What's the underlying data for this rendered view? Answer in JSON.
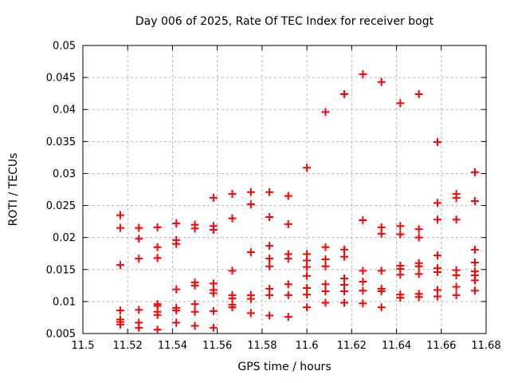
{
  "window": {
    "background": "#ffffff"
  },
  "chart_data": {
    "type": "scatter",
    "title": "Day 006 of 2025, Rate Of TEC Index for receiver bogt",
    "xlabel": "GPS time / hours",
    "ylabel": "ROTI / TECUs",
    "xlim": [
      11.5,
      11.68
    ],
    "ylim": [
      0.005,
      0.05
    ],
    "xticks": [
      11.5,
      11.52,
      11.54,
      11.56,
      11.58,
      11.6,
      11.62,
      11.64,
      11.66,
      11.68
    ],
    "xtick_labels": [
      "11.5",
      "11.52",
      "11.54",
      "11.56",
      "11.58",
      "11.6",
      "11.62",
      "11.64",
      "11.66",
      "11.68"
    ],
    "yticks": [
      0.005,
      0.01,
      0.015,
      0.02,
      0.025,
      0.03,
      0.035,
      0.04,
      0.045,
      0.05
    ],
    "ytick_labels": [
      "0.005",
      "0.01",
      "0.015",
      "0.02",
      "0.025",
      "0.03",
      "0.035",
      "0.04",
      "0.045",
      "0.05"
    ],
    "grid": true,
    "legend": "none",
    "marker": "plus",
    "colors": {
      "marker": "#ff0000",
      "grid": "#b4b4b4",
      "border": "#000000",
      "text": "#000000",
      "background": "#ffffff"
    },
    "series": [
      {
        "name": "ROTI",
        "points": [
          [
            11.5167,
            0.0235
          ],
          [
            11.5167,
            0.0215
          ],
          [
            11.5167,
            0.0157
          ],
          [
            11.5167,
            0.0086
          ],
          [
            11.5167,
            0.0072
          ],
          [
            11.5167,
            0.0068
          ],
          [
            11.5167,
            0.0064
          ],
          [
            11.525,
            0.0215
          ],
          [
            11.525,
            0.0198
          ],
          [
            11.525,
            0.0167
          ],
          [
            11.525,
            0.0087
          ],
          [
            11.525,
            0.0067
          ],
          [
            11.525,
            0.0059
          ],
          [
            11.5333,
            0.0216
          ],
          [
            11.5333,
            0.0185
          ],
          [
            11.5333,
            0.0168
          ],
          [
            11.5333,
            0.0096
          ],
          [
            11.5333,
            0.0093
          ],
          [
            11.5333,
            0.0084
          ],
          [
            11.5333,
            0.0079
          ],
          [
            11.5333,
            0.0056
          ],
          [
            11.5417,
            0.0222
          ],
          [
            11.5417,
            0.0196
          ],
          [
            11.5417,
            0.019
          ],
          [
            11.5417,
            0.0119
          ],
          [
            11.5417,
            0.009
          ],
          [
            11.5417,
            0.0086
          ],
          [
            11.5417,
            0.0067
          ],
          [
            11.55,
            0.022
          ],
          [
            11.55,
            0.0214
          ],
          [
            11.55,
            0.013
          ],
          [
            11.55,
            0.0125
          ],
          [
            11.55,
            0.0096
          ],
          [
            11.55,
            0.0084
          ],
          [
            11.55,
            0.0062
          ],
          [
            11.5583,
            0.0262
          ],
          [
            11.5583,
            0.0218
          ],
          [
            11.5583,
            0.0212
          ],
          [
            11.5583,
            0.0128
          ],
          [
            11.5583,
            0.0118
          ],
          [
            11.5583,
            0.0113
          ],
          [
            11.5583,
            0.0085
          ],
          [
            11.5583,
            0.0059
          ],
          [
            11.5667,
            0.0268
          ],
          [
            11.5667,
            0.023
          ],
          [
            11.5667,
            0.0148
          ],
          [
            11.5667,
            0.011
          ],
          [
            11.5667,
            0.0105
          ],
          [
            11.5667,
            0.0095
          ],
          [
            11.5667,
            0.0091
          ],
          [
            11.575,
            0.0271
          ],
          [
            11.575,
            0.0252
          ],
          [
            11.575,
            0.0177
          ],
          [
            11.575,
            0.011
          ],
          [
            11.575,
            0.0104
          ],
          [
            11.575,
            0.0082
          ],
          [
            11.5833,
            0.0271
          ],
          [
            11.5833,
            0.0232
          ],
          [
            11.5833,
            0.0187
          ],
          [
            11.5833,
            0.0167
          ],
          [
            11.5833,
            0.0155
          ],
          [
            11.5833,
            0.012
          ],
          [
            11.5833,
            0.011
          ],
          [
            11.5833,
            0.0078
          ],
          [
            11.5917,
            0.0265
          ],
          [
            11.5917,
            0.0221
          ],
          [
            11.5917,
            0.0174
          ],
          [
            11.5917,
            0.0167
          ],
          [
            11.5917,
            0.0127
          ],
          [
            11.5917,
            0.011
          ],
          [
            11.5917,
            0.0076
          ],
          [
            11.6,
            0.0309
          ],
          [
            11.6,
            0.0174
          ],
          [
            11.6,
            0.0164
          ],
          [
            11.6,
            0.0154
          ],
          [
            11.6,
            0.014
          ],
          [
            11.6,
            0.0121
          ],
          [
            11.6,
            0.0111
          ],
          [
            11.6,
            0.0091
          ],
          [
            11.6083,
            0.0396
          ],
          [
            11.6083,
            0.0185
          ],
          [
            11.6083,
            0.0166
          ],
          [
            11.6083,
            0.0155
          ],
          [
            11.6083,
            0.0127
          ],
          [
            11.6083,
            0.0116
          ],
          [
            11.6083,
            0.0098
          ],
          [
            11.6167,
            0.0424
          ],
          [
            11.6167,
            0.0181
          ],
          [
            11.6167,
            0.017
          ],
          [
            11.6167,
            0.0136
          ],
          [
            11.6167,
            0.0126
          ],
          [
            11.6167,
            0.0116
          ],
          [
            11.6167,
            0.0098
          ],
          [
            11.625,
            0.0455
          ],
          [
            11.625,
            0.0227
          ],
          [
            11.625,
            0.0148
          ],
          [
            11.625,
            0.0131
          ],
          [
            11.625,
            0.0117
          ],
          [
            11.625,
            0.0097
          ],
          [
            11.6333,
            0.0443
          ],
          [
            11.6333,
            0.0216
          ],
          [
            11.6333,
            0.0206
          ],
          [
            11.6333,
            0.0148
          ],
          [
            11.6333,
            0.012
          ],
          [
            11.6333,
            0.0116
          ],
          [
            11.6333,
            0.0091
          ],
          [
            11.6417,
            0.041
          ],
          [
            11.6417,
            0.0218
          ],
          [
            11.6417,
            0.0205
          ],
          [
            11.6417,
            0.0156
          ],
          [
            11.6417,
            0.0151
          ],
          [
            11.6417,
            0.0142
          ],
          [
            11.6417,
            0.0111
          ],
          [
            11.6417,
            0.0106
          ],
          [
            11.65,
            0.0424
          ],
          [
            11.65,
            0.0213
          ],
          [
            11.65,
            0.02
          ],
          [
            11.65,
            0.016
          ],
          [
            11.65,
            0.0155
          ],
          [
            11.65,
            0.0143
          ],
          [
            11.65,
            0.0112
          ],
          [
            11.65,
            0.0107
          ],
          [
            11.6583,
            0.0349
          ],
          [
            11.6583,
            0.0254
          ],
          [
            11.6583,
            0.0228
          ],
          [
            11.6583,
            0.0172
          ],
          [
            11.6583,
            0.0152
          ],
          [
            11.6583,
            0.0146
          ],
          [
            11.6583,
            0.0118
          ],
          [
            11.6583,
            0.0108
          ],
          [
            11.6667,
            0.0268
          ],
          [
            11.6667,
            0.0262
          ],
          [
            11.6667,
            0.0228
          ],
          [
            11.6667,
            0.0149
          ],
          [
            11.6667,
            0.0141
          ],
          [
            11.6667,
            0.0123
          ],
          [
            11.6667,
            0.011
          ],
          [
            11.675,
            0.0302
          ],
          [
            11.675,
            0.0257
          ],
          [
            11.675,
            0.0181
          ],
          [
            11.675,
            0.0161
          ],
          [
            11.675,
            0.0147
          ],
          [
            11.675,
            0.0141
          ],
          [
            11.675,
            0.0133
          ],
          [
            11.675,
            0.0117
          ]
        ]
      }
    ]
  }
}
